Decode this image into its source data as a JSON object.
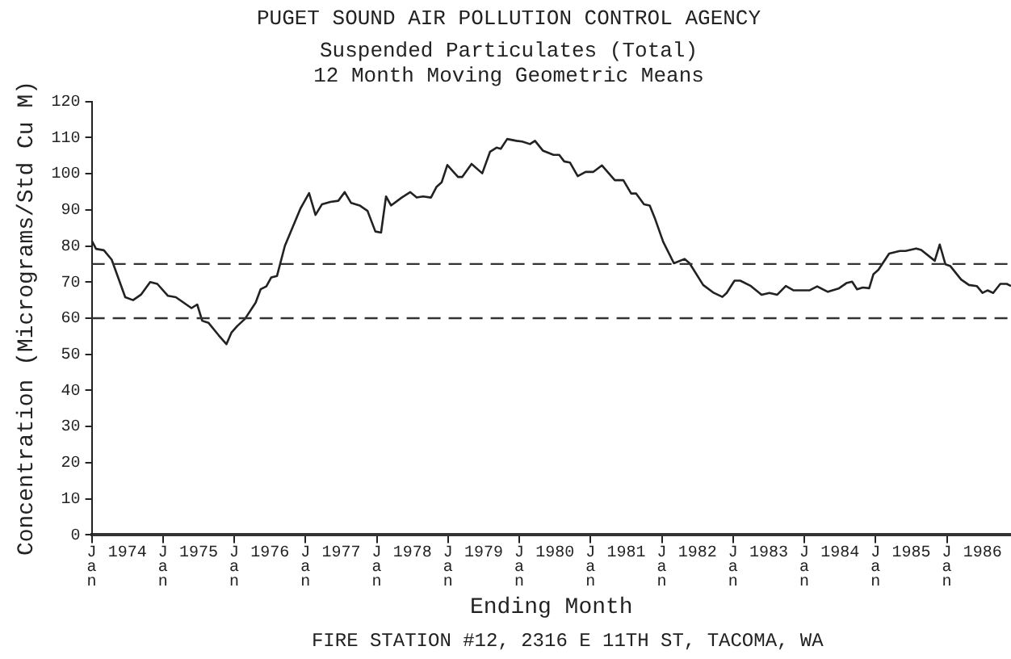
{
  "chart_data": {
    "type": "line",
    "title": "PUGET SOUND AIR POLLUTION CONTROL AGENCY",
    "subtitle": "Suspended Particulates (Total)\n12 Month Moving Geometric Means",
    "xlabel": "Ending Month",
    "ylabel": "Concentration (Micrograms/Std Cu M)",
    "annotations": [
      "FIRE STATION #12, 2316 E 11TH ST, TACOMA, WA"
    ],
    "series": [
      {
        "color": "#222222",
        "x": [
          1974.0,
          1974.06,
          1974.17,
          1974.28,
          1974.47,
          1974.58,
          1974.69,
          1974.82,
          1974.92,
          1975.07,
          1975.18,
          1975.4,
          1975.48,
          1975.55,
          1975.64,
          1975.78,
          1975.89,
          1975.96,
          1976.04,
          1976.15,
          1976.3,
          1976.37,
          1976.45,
          1976.52,
          1976.6,
          1976.71,
          1976.82,
          1976.93,
          1977.05,
          1977.14,
          1977.23,
          1977.35,
          1977.46,
          1977.55,
          1977.64,
          1977.76,
          1977.87,
          1977.98,
          1978.06,
          1978.13,
          1978.2,
          1978.35,
          1978.47,
          1978.56,
          1978.65,
          1978.76,
          1978.84,
          1978.91,
          1978.99,
          1979.14,
          1979.2,
          1979.33,
          1979.48,
          1979.59,
          1979.68,
          1979.74,
          1979.83,
          1979.96,
          1980.04,
          1980.15,
          1980.22,
          1980.33,
          1980.48,
          1980.56,
          1980.63,
          1980.71,
          1980.82,
          1980.93,
          1981.04,
          1981.16,
          1981.34,
          1981.46,
          1981.57,
          1981.64,
          1981.75,
          1981.83,
          1981.9,
          1982.02,
          1982.17,
          1982.32,
          1982.39,
          1982.58,
          1982.73,
          1982.85,
          1982.91,
          1983.02,
          1983.1,
          1983.25,
          1983.4,
          1983.51,
          1983.62,
          1983.74,
          1983.85,
          1984.07,
          1984.18,
          1984.33,
          1984.48,
          1984.59,
          1984.67,
          1984.74,
          1984.82,
          1984.91,
          1984.97,
          1985.04,
          1985.19,
          1985.34,
          1985.42,
          1985.57,
          1985.64,
          1985.83,
          1985.9,
          1985.98,
          1986.05,
          1986.2,
          1986.31,
          1986.42,
          1986.5,
          1986.57,
          1986.65,
          1986.75,
          1986.84,
          1986.9
        ],
        "values": [
          81.5,
          79.2,
          78.8,
          76.2,
          65.8,
          65,
          66.5,
          70,
          69.5,
          66.2,
          65.8,
          62.8,
          63.8,
          59.3,
          58.7,
          55.3,
          52.8,
          56,
          57.8,
          59.8,
          64.3,
          68,
          68.8,
          71.3,
          71.7,
          80,
          85.2,
          90.4,
          94.6,
          88.6,
          91.5,
          92.2,
          92.5,
          94.9,
          91.9,
          91.2,
          89.7,
          84,
          83.7,
          93.7,
          91.2,
          93.4,
          94.9,
          93.4,
          93.7,
          93.4,
          96.4,
          97.6,
          102.4,
          99.1,
          99.1,
          102.7,
          100.1,
          106.1,
          107.2,
          106.9,
          109.6,
          109.1,
          108.9,
          108.2,
          109.1,
          106.4,
          105.2,
          105.2,
          103.4,
          103.1,
          99.3,
          100.5,
          100.5,
          102.3,
          98.2,
          98.2,
          94.5,
          94.5,
          91.5,
          91.2,
          87.8,
          81.1,
          75.2,
          76.4,
          75.2,
          69.2,
          67,
          65.9,
          67,
          70.4,
          70.4,
          68.9,
          66.5,
          67,
          66.5,
          68.9,
          67.7,
          67.7,
          68.8,
          67.3,
          68.2,
          69.7,
          70.1,
          68,
          68.5,
          68.3,
          72.2,
          73.4,
          77.9,
          78.6,
          78.6,
          79.3,
          78.9,
          75.9,
          80.4,
          74.9,
          74.4,
          70.7,
          69.2,
          68.9,
          67,
          67.7,
          67,
          69.5,
          69.5,
          68.9
        ]
      }
    ],
    "xlim": [
      1974.0,
      1986.9
    ],
    "xticks": [
      {
        "value": 1974,
        "label": "Jan"
      },
      {
        "value": 1974.5,
        "label": "1974"
      },
      {
        "value": 1975,
        "label": "Jan"
      },
      {
        "value": 1975.5,
        "label": "1975"
      },
      {
        "value": 1976,
        "label": "Jan"
      },
      {
        "value": 1976.5,
        "label": "1976"
      },
      {
        "value": 1977,
        "label": "Jan"
      },
      {
        "value": 1977.5,
        "label": "1977"
      },
      {
        "value": 1978,
        "label": "Jan"
      },
      {
        "value": 1978.5,
        "label": "1978"
      },
      {
        "value": 1979,
        "label": "Jan"
      },
      {
        "value": 1979.5,
        "label": "1979"
      },
      {
        "value": 1980,
        "label": "Jan"
      },
      {
        "value": 1980.5,
        "label": "1980"
      },
      {
        "value": 1981,
        "label": "Jan"
      },
      {
        "value": 1981.5,
        "label": "1981"
      },
      {
        "value": 1982,
        "label": "Jan"
      },
      {
        "value": 1982.5,
        "label": "1982"
      },
      {
        "value": 1983,
        "label": "Jan"
      },
      {
        "value": 1983.5,
        "label": "1983"
      },
      {
        "value": 1984,
        "label": "Jan"
      },
      {
        "value": 1984.5,
        "label": "1984"
      },
      {
        "value": 1985,
        "label": "Jan"
      },
      {
        "value": 1985.5,
        "label": "1985"
      },
      {
        "value": 1986,
        "label": "Jan"
      },
      {
        "value": 1986.5,
        "label": "1986"
      }
    ],
    "ylim": [
      0,
      120
    ],
    "yticks": [
      0,
      10,
      20,
      30,
      40,
      50,
      60,
      70,
      80,
      90,
      100,
      110,
      120
    ],
    "ref_lines": [
      {
        "axis": "y",
        "value": 75,
        "color": "#333333",
        "line_style": "dashed"
      },
      {
        "axis": "y",
        "value": 60,
        "color": "#333333",
        "line_style": "dashed"
      }
    ],
    "grid": false,
    "legend": false,
    "marker": "none",
    "line_style": "solid"
  }
}
